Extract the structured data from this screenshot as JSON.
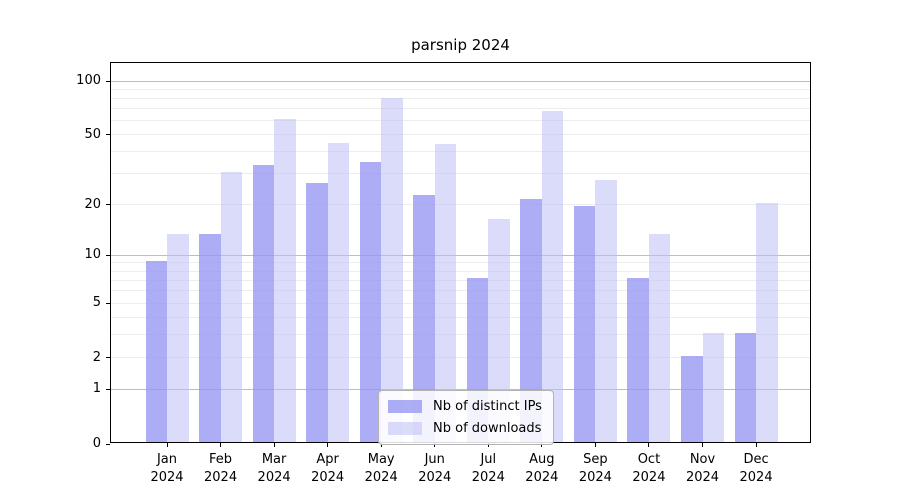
{
  "title": "parsnip 2024",
  "colors": {
    "distinct_ips": "rgba(150,150,244,0.78)",
    "downloads": "rgba(190,190,246,0.55)",
    "grid_minor": "#ededed",
    "grid_major": "#bdbdbd",
    "axis": "#000000"
  },
  "legend": {
    "items": [
      {
        "label": "Nb of distinct IPs",
        "series": "distinct_ips"
      },
      {
        "label": "Nb of downloads",
        "series": "downloads"
      }
    ]
  },
  "chart_data": {
    "type": "bar",
    "title": "parsnip 2024",
    "categories": [
      "Jan 2024",
      "Feb 2024",
      "Mar 2024",
      "Apr 2024",
      "May 2024",
      "Jun 2024",
      "Jul 2024",
      "Aug 2024",
      "Sep 2024",
      "Oct 2024",
      "Nov 2024",
      "Dec 2024"
    ],
    "month_labels": [
      "Jan",
      "Feb",
      "Mar",
      "Apr",
      "May",
      "Jun",
      "Jul",
      "Aug",
      "Sep",
      "Oct",
      "Nov",
      "Dec"
    ],
    "year": "2024",
    "series": [
      {
        "name": "Nb of distinct IPs",
        "color_key": "distinct_ips",
        "values": [
          9,
          13,
          33,
          26,
          34,
          22,
          7,
          21,
          19,
          7,
          2,
          3
        ]
      },
      {
        "name": "Nb of downloads",
        "color_key": "downloads",
        "values": [
          13,
          30,
          60,
          44,
          78,
          43,
          16,
          66,
          27,
          13,
          3,
          20
        ]
      }
    ],
    "xlabel": "",
    "ylabel": "",
    "yscale": "log1p",
    "yticks": [
      0,
      1,
      2,
      5,
      10,
      20,
      50,
      100
    ],
    "grid_minor_values": [
      2,
      3,
      4,
      5,
      6,
      7,
      8,
      9,
      20,
      30,
      40,
      50,
      60,
      70,
      80,
      90
    ],
    "grid_major_values": [
      1,
      10,
      100
    ],
    "ylim": [
      0,
      126
    ],
    "grid": "horizontal",
    "legend_position": "lower center"
  }
}
